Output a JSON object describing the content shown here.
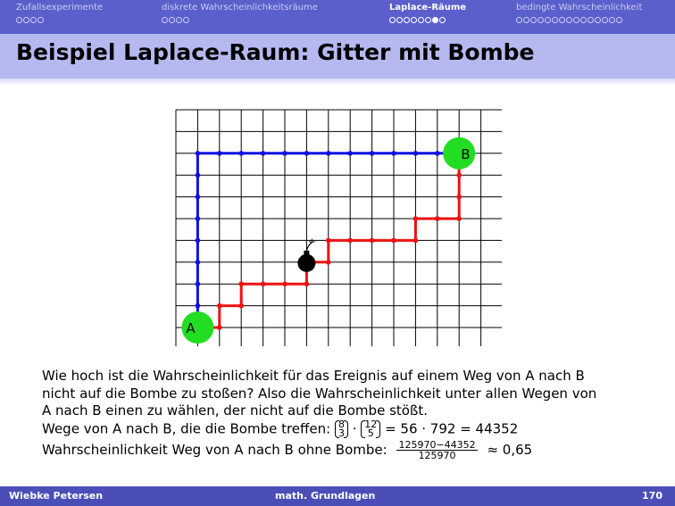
{
  "nav": {
    "sections": [
      {
        "label": "Zufallsexperimente",
        "dots": 4,
        "current": -1,
        "active": false
      },
      {
        "label": "diskrete Wahrscheinlichkeitsräume",
        "dots": 4,
        "current": -1,
        "active": false
      },
      {
        "label": "Laplace-Räume",
        "dots": 8,
        "current": 6,
        "active": true
      },
      {
        "label": "bedingte Wahrscheinlichkeit",
        "dots": 15,
        "current": -1,
        "active": false
      }
    ]
  },
  "slide": {
    "title": "Beispiel Laplace-Raum: Gitter mit Bombe"
  },
  "grid": {
    "cols": 15,
    "rows": 11,
    "label_a": "A",
    "label_b": "B",
    "colors": {
      "blue_path": "#1010e0",
      "red_path": "#ee1111",
      "endpoint": "#22dd22",
      "bomb": "#000000"
    }
  },
  "text": {
    "line1": "Wie hoch ist die Wahrscheinlichkeit für das Ereignis auf einem Weg von A nach B",
    "line2": "nicht auf die Bombe zu stoßen? Also die Wahrscheinlichkeit unter allen Wegen von",
    "line3": "A nach B einen zu wählen, der nicht auf die Bombe stößt.",
    "line4_prefix": "Wege von A nach B, die die Bombe treffen:",
    "binom1_top": "8",
    "binom1_bottom": "3",
    "dot": "·",
    "binom2_top": "12",
    "binom2_bottom": "5",
    "line4_result": "= 56 · 792 = 44352",
    "line5_prefix": "Wahrscheinlichkeit Weg von A nach B ohne Bombe:",
    "frac_num": "125970−44352",
    "frac_den": "125970",
    "line5_result": "≈ 0,65"
  },
  "footer": {
    "author": "Wiebke Petersen",
    "course": "math. Grundlagen",
    "page": "170"
  }
}
